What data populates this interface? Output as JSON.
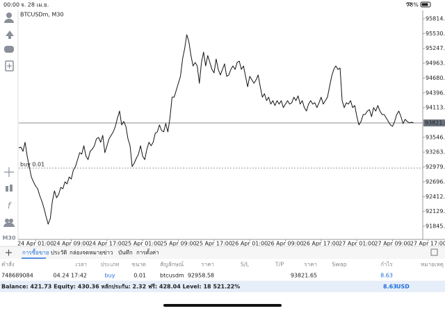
{
  "status_bar": {
    "time": "00:00",
    "date": "จ. 28 เม.ย.",
    "battery": "78%"
  },
  "toolbar": {
    "timeframe": "M30"
  },
  "chart_data": {
    "type": "line",
    "title": "BTCUSDm, M30",
    "categories": [
      null,
      null,
      null,
      null,
      null,
      null,
      null,
      null,
      "24 Apr 01:00",
      null,
      null,
      null,
      null,
      null,
      null,
      null,
      null,
      null,
      null,
      null,
      null,
      null,
      null,
      null,
      null,
      "24 Apr 09:00",
      null,
      null,
      null,
      null,
      null,
      null,
      null,
      null,
      null,
      null,
      null,
      null,
      null,
      null,
      null,
      null,
      "24 Apr 17:00",
      null,
      null,
      null,
      null,
      null,
      null,
      null,
      null,
      null,
      null,
      null,
      null,
      null,
      null,
      null,
      null,
      "25 Apr 01:00",
      null,
      null,
      null,
      null,
      null,
      null,
      null,
      null,
      null,
      null,
      null,
      null,
      null,
      null,
      null,
      null,
      "25 Apr 09:00",
      null,
      null,
      null,
      null,
      null,
      null,
      null,
      null,
      null,
      null,
      null,
      null,
      null,
      null,
      null,
      null,
      "25 Apr 17:00",
      null,
      null,
      null,
      null,
      null,
      null,
      null,
      null,
      null,
      null,
      null,
      null,
      null,
      null,
      null,
      null,
      "26 Apr 01:00",
      null,
      null,
      null,
      null,
      null,
      null,
      null,
      null,
      null,
      null,
      null,
      null,
      null,
      null,
      null,
      null,
      "26 Apr 09:00",
      null,
      null,
      null,
      null,
      null,
      null,
      null,
      null,
      null,
      null,
      null,
      null,
      null,
      null,
      null,
      null,
      "26 Apr 17:00",
      null,
      null,
      null,
      null,
      null,
      null,
      null,
      null,
      null,
      null,
      null,
      null,
      null,
      null,
      null,
      null,
      "27 Apr 01:00",
      null,
      null,
      null,
      null,
      null,
      null,
      null,
      null,
      null,
      null,
      null,
      null,
      null,
      null,
      null,
      null,
      "27 Apr 09:00",
      null,
      null,
      null,
      null,
      null,
      null,
      null,
      null,
      null,
      null,
      null,
      null,
      null,
      null,
      null,
      null,
      "27 Apr 17:00"
    ],
    "values": [
      93346,
      93359,
      93279,
      93452,
      93187,
      92987,
      92788,
      92696,
      92616,
      92563,
      92430,
      92324,
      92191,
      92032,
      91886,
      91992,
      92324,
      92523,
      92390,
      92457,
      92589,
      92563,
      92696,
      92656,
      92788,
      92749,
      92921,
      92987,
      93120,
      93253,
      93226,
      93386,
      93187,
      93120,
      93279,
      93319,
      93386,
      93518,
      93545,
      93452,
      93585,
      93253,
      93386,
      93518,
      93585,
      93651,
      93757,
      93916,
      94049,
      93784,
      93850,
      93757,
      93518,
      93386,
      92987,
      93054,
      93147,
      93226,
      93386,
      93187,
      93120,
      93319,
      93452,
      93386,
      93452,
      93624,
      93651,
      93784,
      93678,
      93651,
      93810,
      93651,
      93916,
      94314,
      94314,
      94447,
      94580,
      94713,
      95044,
      95243,
      95509,
      95376,
      95111,
      94912,
      94978,
      94912,
      94580,
      94978,
      95177,
      94912,
      95111,
      94978,
      94845,
      94779,
      95044,
      94845,
      94739,
      94845,
      94951,
      94713,
      94739,
      94845,
      94912,
      94845,
      94978,
      95005,
      94845,
      94912,
      94713,
      94514,
      94713,
      94646,
      94580,
      94646,
      94739,
      94514,
      94314,
      94381,
      94248,
      94314,
      94182,
      94248,
      94155,
      94248,
      94182,
      94248,
      94115,
      94182,
      94248,
      94182,
      94208,
      94314,
      94248,
      94341,
      94182,
      94248,
      94115,
      94049,
      94182,
      94248,
      94182,
      94208,
      94115,
      94208,
      94314,
      94182,
      94248,
      94314,
      94514,
      94713,
      94845,
      94912,
      94845,
      94872,
      94248,
      94115,
      94208,
      94182,
      94248,
      94115,
      94155,
      93943,
      93784,
      93850,
      93983,
      93983,
      94049,
      94076,
      93943,
      94115,
      94049,
      94155,
      94049,
      93983,
      93983,
      93916,
      93850,
      93784,
      93757,
      93850,
      93983,
      94049,
      93943,
      93810,
      93890,
      93850,
      93823,
      93837,
      93822,
      null,
      null,
      null,
      null,
      null,
      null,
      null
    ],
    "color": "#111111",
    "ylim": [
      91594,
      95934
    ],
    "yticks": [
      91845.85,
      {
        "value": 92129.3,
        "label": "92129.30"
      },
      92412.75,
      {
        "value": 92696.2,
        "label": "92696.20"
      },
      92979.65,
      {
        "value": 93263.1,
        "label": "93263.10"
      },
      93546.55,
      94113.45,
      {
        "value": 94396.9,
        "label": "94396.90"
      },
      94680.35,
      {
        "value": 94963.8,
        "label": "94963.80"
      },
      95247.25,
      {
        "value": 95530.7,
        "label": "95530.70"
      },
      95814.15
    ],
    "current_price": 93821.65,
    "position_line": {
      "label": "buy 0.01",
      "value": 92958.58
    },
    "grid": false
  },
  "tabs": [
    "การซื้อขาย",
    "ประวัติ",
    "กล่องจดหมาย",
    "ข่าว",
    "บันทึก",
    "การตั้งค่า"
  ],
  "table": {
    "headers": [
      "คำสั่ง",
      "เวลา",
      "ประเภท",
      "ขนาด",
      "สัญลักษณ์",
      "ราคา",
      "S/L",
      "T/P",
      "ราคา",
      "Swap",
      "กำไร",
      "หมายเหตุ"
    ],
    "rows": [
      [
        "748689084",
        "04.24 17:42",
        "buy",
        "0.01",
        "btcusdm",
        "92958.58",
        null,
        null,
        "93821.65",
        null,
        "8.63",
        null
      ]
    ]
  },
  "summary": {
    "text": "Balance: 421.73 Equity: 430.36 หลักประกัน: 2.32 ฟรี: 428.04 Level: 18 521.22%",
    "profit": "8.63",
    "currency": "USD"
  }
}
